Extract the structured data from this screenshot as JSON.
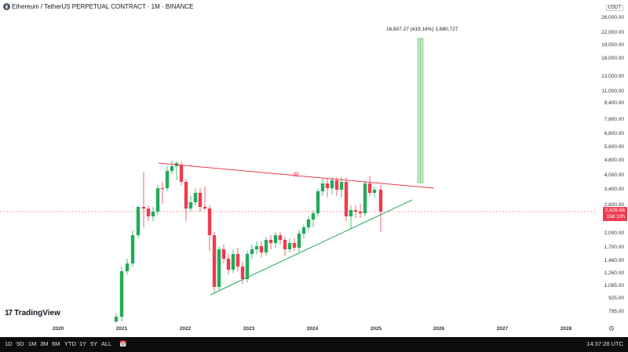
{
  "header": {
    "title": "Ethereum / TetherUS PERPETUAL CONTRACT · 1M · BINANCE",
    "currency": "USDT"
  },
  "price_axis": {
    "labels": [
      "26,000.00",
      "22,000.00",
      "19,000.00",
      "16,000.00",
      "13,000.00",
      "11,000.00",
      "9,400.00",
      "7,800.00",
      "6,600.00",
      "5,600.00",
      "4,800.00",
      "4,000.00",
      "3,400.00",
      "2,800.00",
      "2,000.00",
      "1,700.00",
      "1,460.00",
      "1,260.00",
      "1,085.00",
      "925.00",
      "795.00"
    ],
    "current_price": "2,626.68",
    "countdown": "19d 10h"
  },
  "time_axis": {
    "labels": [
      "2020",
      "2021",
      "2022",
      "2023",
      "2024",
      "2025",
      "2026",
      "2027",
      "2028"
    ]
  },
  "annotation": {
    "text": "16,807.27 (419.16%) 1,680,727",
    "resistance_label": "R"
  },
  "branding": {
    "logo_mark": "17",
    "logo_text": "TradingView"
  },
  "toolbar": {
    "ranges": [
      "1D",
      "5D",
      "1M",
      "3M",
      "6M",
      "YTD",
      "1Y",
      "5Y",
      "ALL"
    ],
    "clock": "14:37:28 UTC"
  },
  "colors": {
    "up": "#22ab5a",
    "down": "#ef3b4f",
    "resistance": "#ef3b4f",
    "support": "#22ab5a",
    "projection": "#a5d6a7"
  }
}
